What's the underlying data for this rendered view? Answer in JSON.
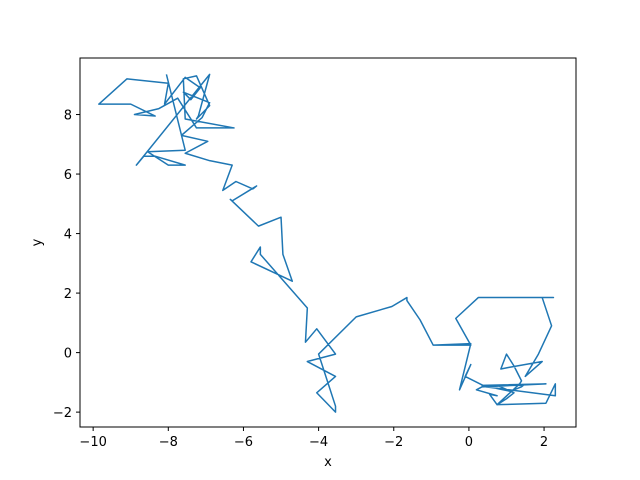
{
  "chart_data": {
    "type": "line",
    "title": "",
    "xlabel": "x",
    "ylabel": "y",
    "xlim": [
      -10.35,
      2.85
    ],
    "ylim": [
      -2.5,
      9.9
    ],
    "xticks": [
      -10,
      -8,
      -6,
      -4,
      -2,
      0,
      2
    ],
    "yticks": [
      -2,
      0,
      2,
      4,
      6,
      8
    ],
    "xtick_labels": [
      "−10",
      "−8",
      "−6",
      "−4",
      "−2",
      "0",
      "2"
    ],
    "ytick_labels": [
      "−2",
      "0",
      "2",
      "4",
      "6",
      "8"
    ],
    "grid": false,
    "legend": false,
    "series": [
      {
        "color": "#1f77b4",
        "x": [
          -0.95,
          0.05,
          -0.35,
          0.25,
          1.1,
          1.95,
          2.25,
          1.95,
          2.2,
          1.85,
          1.5,
          1.95,
          1.05,
          0.85,
          1.0,
          1.2,
          1.4,
          1.35,
          0.75,
          1.0,
          1.2,
          0.75,
          1.45,
          1.4,
          1.1,
          0.35,
          2.05,
          0.35,
          0.2,
          0.75,
          0.55,
          0.75,
          2.05,
          2.3,
          2.3,
          0.45,
          -0.1,
          0.05,
          -0.25,
          0.05,
          -0.95,
          -1.3,
          -1.65,
          -1.65,
          -2.05,
          -3.0,
          -4.0,
          -3.55,
          -3.55,
          -4.05,
          -3.55,
          -4.3,
          -3.55,
          -4.05,
          -4.35,
          -4.3,
          -5.55,
          -5.55,
          -5.8,
          -4.7,
          -4.95,
          -5.0,
          -5.6,
          -6.35,
          -6.3,
          -5.65,
          -5.75,
          -6.2,
          -6.55,
          -6.3,
          -6.9,
          -7.55,
          -6.95,
          -7.65,
          -7.1,
          -6.9,
          -7.6,
          -7.4,
          -7.15,
          -7.55,
          -8.1,
          -8.0,
          -9.1,
          -9.85,
          -9.0,
          -8.35,
          -8.9,
          -8.25,
          -7.75,
          -7.25,
          -6.25,
          -7.55,
          -7.6,
          -7.25,
          -6.9,
          -7.25,
          -7.2,
          -6.9,
          -8.85,
          -8.65,
          -8.35,
          -7.55,
          -8.0,
          -8.55,
          -7.55,
          -7.55,
          -8.05
        ]
      }
    ],
    "y_series": [
      [
        0.25,
        0.25,
        1.15,
        1.85,
        1.85,
        1.85,
        1.85,
        1.85,
        0.9,
        -0.05,
        -0.8,
        -0.3,
        -0.5,
        -0.55,
        -0.05,
        -0.45,
        -0.95,
        -1.05,
        -1.75,
        -1.55,
        -1.35,
        -1.1,
        -1.1,
        -1.15,
        -1.3,
        -1.1,
        -1.05,
        -1.15,
        -1.25,
        -1.45,
        -1.4,
        -1.75,
        -1.7,
        -1.05,
        -1.45,
        -1.15,
        -0.8,
        -0.4,
        -1.25,
        0.3,
        0.25,
        1.1,
        1.75,
        1.85,
        1.55,
        1.2,
        -0.05,
        -1.8,
        -2.0,
        -1.35,
        -0.8,
        -0.3,
        -0.05,
        0.8,
        0.35,
        1.5,
        3.3,
        3.55,
        3.05,
        2.4,
        3.3,
        4.55,
        4.25,
        5.15,
        5.1,
        5.6,
        5.5,
        5.75,
        5.45,
        6.3,
        6.45,
        6.7,
        7.1,
        7.3,
        7.9,
        8.4,
        8.75,
        8.5,
        8.9,
        9.25,
        8.35,
        9.05,
        9.2,
        8.35,
        8.35,
        7.95,
        8.0,
        8.2,
        8.55,
        7.55,
        7.55,
        7.85,
        9.2,
        9.3,
        8.3,
        7.85,
        7.95,
        9.35,
        6.3,
        6.6,
        6.6,
        6.3,
        6.3,
        6.75,
        6.8,
        6.8,
        9.35
      ]
    ]
  }
}
